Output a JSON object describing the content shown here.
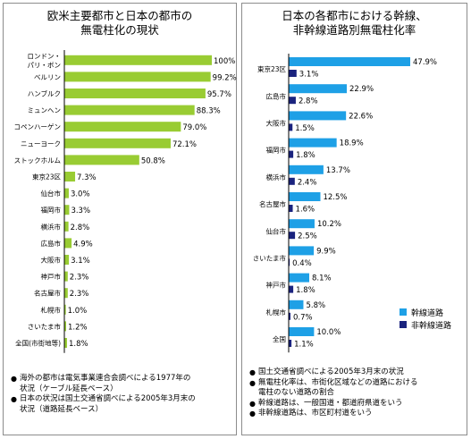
{
  "left_panel": {
    "title_lines": [
      "欧米主要都市と日本の都市の",
      "無電柱化の現状"
    ],
    "notes": [
      [
        "海外の都市は電気事業連合会調べによる1977年の",
        "状況（ケーブル延長ベース）"
      ],
      [
        "日本の状況は国土交通省調べによる2005年3月末の",
        "状況（道路延長ベース）"
      ]
    ]
  },
  "right_panel": {
    "title_lines": [
      "日本の各都市における幹線、",
      "非幹線道路別無電柱化率"
    ],
    "notes": [
      [
        "国土交通省調べによる2005年3月末の状況"
      ],
      [
        "無電柱化率は、市街化区域などの道路における",
        "電柱のない道路の割合"
      ],
      [
        "幹線道路は、一般国道・都道府県道をいう"
      ],
      [
        "非幹線道路は、市区町村道をいう"
      ]
    ]
  },
  "colors": {
    "green_bar": "#99cc33",
    "trunk_bar": "#1ea0e6",
    "non_trunk_bar": "#1a237e",
    "panel_border": "#8c8c8c",
    "axis": "#000000"
  },
  "chart_data": [
    {
      "type": "bar",
      "orientation": "horizontal",
      "title": "欧米主要都市と日本の都市の無電柱化の現状",
      "categories": [
        [
          "ロンドン・",
          "パリ・ボン"
        ],
        "ベルリン",
        "ハンブルク",
        "ミュンヘン",
        "コペンハーゲン",
        "ニューヨーク",
        "ストックホルム",
        "東京23区",
        "仙台市",
        "福岡市",
        "横浜市",
        "広島市",
        "大阪市",
        "神戸市",
        "名古屋市",
        "札幌市",
        "さいたま市",
        "全国(市街地等)"
      ],
      "values": [
        100,
        99.2,
        95.7,
        88.3,
        79.0,
        72.1,
        50.8,
        7.3,
        3.0,
        3.3,
        2.8,
        4.9,
        3.1,
        2.3,
        2.3,
        1.0,
        1.2,
        1.8
      ],
      "value_labels": [
        "100%",
        "99.2%",
        "95.7%",
        "88.3%",
        "79.0%",
        "72.1%",
        "50.8%",
        "7.3%",
        "3.0%",
        "3.3%",
        "2.8%",
        "4.9%",
        "3.1%",
        "2.3%",
        "2.3%",
        "1.0%",
        "1.2%",
        "1.8%"
      ],
      "xlim": [
        0,
        100
      ],
      "grid": false,
      "legend": "none"
    },
    {
      "type": "bar",
      "orientation": "horizontal",
      "title": "日本の各都市における幹線、非幹線道路別無電柱化率",
      "categories": [
        "東京23区",
        "広島市",
        "大阪市",
        "福岡市",
        "横浜市",
        "名古屋市",
        "仙台市",
        "さいたま市",
        "神戸市",
        "札幌市",
        "全国"
      ],
      "series": [
        {
          "name": "幹線道路",
          "values": [
            47.9,
            22.9,
            22.6,
            18.9,
            13.7,
            12.5,
            10.2,
            9.9,
            8.1,
            5.8,
            10.0
          ],
          "value_labels": [
            "47.9%",
            "22.9%",
            "22.6%",
            "18.9%",
            "13.7%",
            "12.5%",
            "10.2%",
            "9.9%",
            "8.1%",
            "5.8%",
            "10.0%"
          ]
        },
        {
          "name": "非幹線道路",
          "values": [
            3.1,
            2.8,
            1.5,
            1.8,
            2.4,
            1.6,
            2.5,
            0.4,
            1.8,
            0.7,
            1.1
          ],
          "value_labels": [
            "3.1%",
            "2.8%",
            "1.5%",
            "1.8%",
            "2.4%",
            "1.6%",
            "2.5%",
            "0.4%",
            "1.8%",
            "0.7%",
            "1.1%"
          ]
        }
      ],
      "xlim": [
        0,
        47.9
      ],
      "grid": false,
      "legend": "bottom-right"
    }
  ]
}
